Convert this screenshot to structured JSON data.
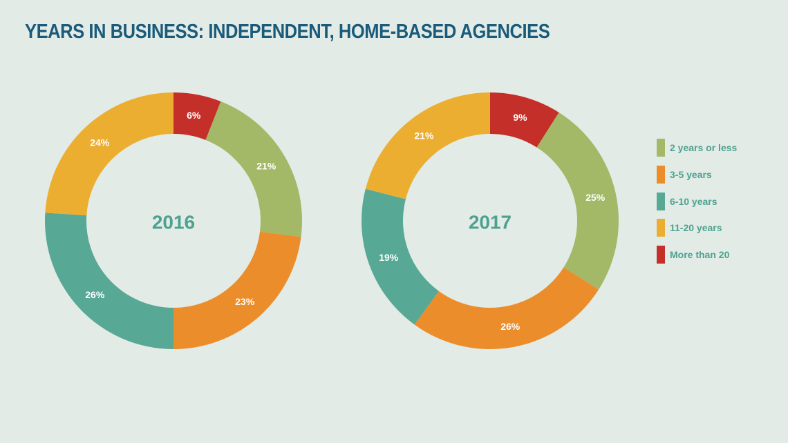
{
  "title": "YEARS IN BUSINESS: INDEPENDENT, HOME-BASED AGENCIES",
  "legend": [
    {
      "label": "2 years or less",
      "color": "#a3b967"
    },
    {
      "label": "3-5 years",
      "color": "#ec8d2b"
    },
    {
      "label": "6-10 years",
      "color": "#57a895"
    },
    {
      "label": "11-20 years",
      "color": "#ecae31"
    },
    {
      "label": "More than 20",
      "color": "#c52f2a"
    }
  ],
  "chart_data": [
    {
      "type": "pie",
      "title": "2016",
      "categories": [
        "2 years or less",
        "3-5 years",
        "6-10 years",
        "11-20 years",
        "More than 20"
      ],
      "values": [
        21,
        23,
        26,
        24,
        6
      ],
      "labels": [
        "21%",
        "23%",
        "26%",
        "24%",
        "6%"
      ],
      "unit": "%",
      "start": "top, clockwise, More than 20 first",
      "legend_position": "right"
    },
    {
      "type": "pie",
      "title": "2017",
      "categories": [
        "2 years or less",
        "3-5 years",
        "6-10 years",
        "11-20 years",
        "More than 20"
      ],
      "values": [
        25,
        26,
        19,
        21,
        9
      ],
      "labels": [
        "25%",
        "26%",
        "19%",
        "21%",
        "9%"
      ],
      "unit": "%",
      "start": "top, clockwise, More than 20 first",
      "legend_position": "right"
    }
  ]
}
